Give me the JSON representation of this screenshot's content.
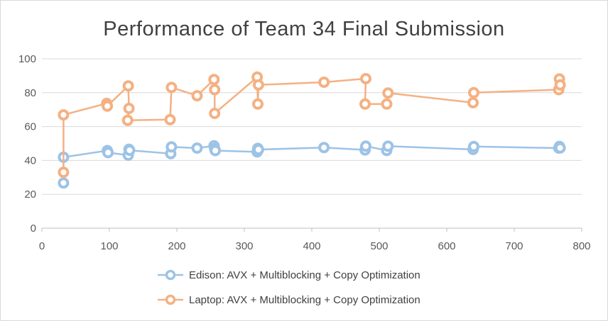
{
  "chart_data": {
    "type": "scatter",
    "title": "Performance of Team 34 Final Submission",
    "xlabel": "",
    "ylabel": "",
    "xlim": [
      0,
      800
    ],
    "ylim": [
      0,
      100
    ],
    "x_ticks": [
      0,
      100,
      200,
      300,
      400,
      500,
      600,
      700,
      800
    ],
    "y_ticks": [
      0,
      20,
      40,
      60,
      80,
      100
    ],
    "grid": "horizontal",
    "legend_position": "bottom",
    "series": [
      {
        "name": "Edison: AVX + Multiblocking  + Copy Optimization",
        "color": "#9dc3e6",
        "marker": "circle",
        "points": [
          [
            32,
            26.7
          ],
          [
            32,
            41.9
          ],
          [
            97,
            45.8
          ],
          [
            98,
            44.6
          ],
          [
            128,
            43.1
          ],
          [
            129,
            46.6
          ],
          [
            130,
            46.0
          ],
          [
            191,
            44.0
          ],
          [
            192,
            48.0
          ],
          [
            230,
            47.3
          ],
          [
            255,
            48.6
          ],
          [
            256,
            46.9
          ],
          [
            257,
            45.8
          ],
          [
            319,
            45.0
          ],
          [
            320,
            47.1
          ],
          [
            321,
            46.4
          ],
          [
            418,
            47.6
          ],
          [
            479,
            46.2
          ],
          [
            480,
            48.4
          ],
          [
            511,
            45.9
          ],
          [
            513,
            48.4
          ],
          [
            639,
            46.5
          ],
          [
            640,
            48.2
          ],
          [
            766,
            47.3
          ],
          [
            767,
            48.3
          ],
          [
            768,
            47.4
          ]
        ]
      },
      {
        "name": "Laptop: AVX + Multiblocking + Copy Optimization",
        "color": "#f4b183",
        "marker": "circle",
        "points": [
          [
            32,
            33.0
          ],
          [
            32,
            66.9
          ],
          [
            96,
            73.7
          ],
          [
            97,
            72.1
          ],
          [
            128,
            84.0
          ],
          [
            129,
            70.7
          ],
          [
            127,
            63.7
          ],
          [
            190,
            64.1
          ],
          [
            192,
            83.1
          ],
          [
            230,
            78.2
          ],
          [
            255,
            87.8
          ],
          [
            256,
            81.8
          ],
          [
            256,
            67.8
          ],
          [
            319,
            89.2
          ],
          [
            320,
            73.3
          ],
          [
            321,
            84.6
          ],
          [
            418,
            86.2
          ],
          [
            480,
            88.3
          ],
          [
            479,
            73.3
          ],
          [
            511,
            73.3
          ],
          [
            513,
            79.8
          ],
          [
            639,
            74.1
          ],
          [
            640,
            80.0
          ],
          [
            766,
            81.8
          ],
          [
            767,
            88.1
          ],
          [
            768,
            84.6
          ]
        ]
      }
    ]
  }
}
